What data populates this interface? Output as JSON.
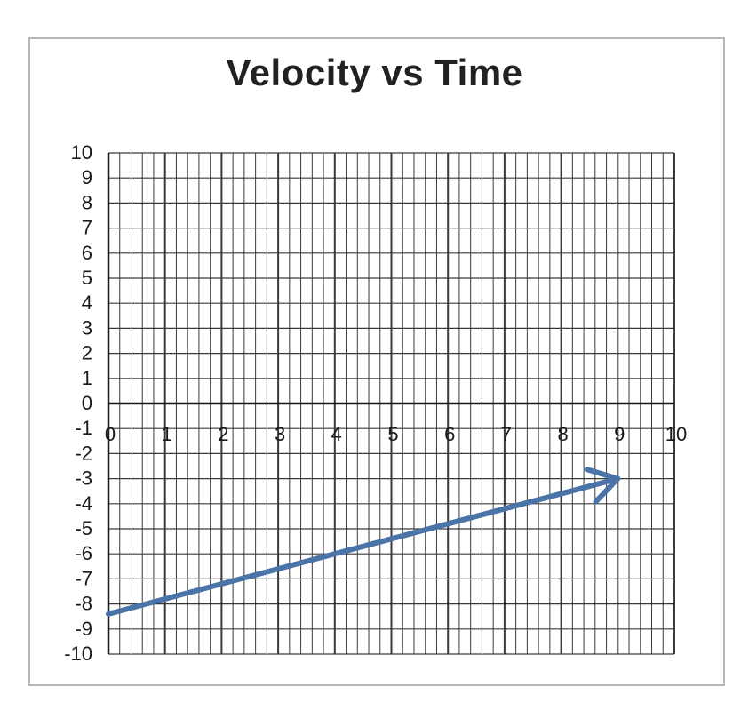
{
  "chart_data": {
    "type": "line",
    "title": "Velocity vs Time",
    "xlabel": "",
    "ylabel": "",
    "xlim": [
      0,
      10
    ],
    "ylim": [
      -10,
      10
    ],
    "x_ticks": [
      "0",
      "1",
      "2",
      "3",
      "4",
      "5",
      "6",
      "7",
      "8",
      "9",
      "10"
    ],
    "y_ticks": [
      "10",
      "9",
      "8",
      "7",
      "6",
      "5",
      "4",
      "3",
      "2",
      "1",
      "0",
      "-1",
      "-2",
      "-3",
      "-4",
      "-5",
      "-6",
      "-7",
      "-8",
      "-9",
      "-10"
    ],
    "grid": true,
    "minor_grid_x_per_unit": 5,
    "series": [
      {
        "x": [
          0,
          9
        ],
        "y": [
          -8.4,
          -3.0
        ],
        "arrow_end": true,
        "color": "#4a73a8"
      }
    ],
    "colors": {
      "grid": "#3a3a3a",
      "axis": "#1a1a1a",
      "line": "#4a73a8"
    }
  }
}
